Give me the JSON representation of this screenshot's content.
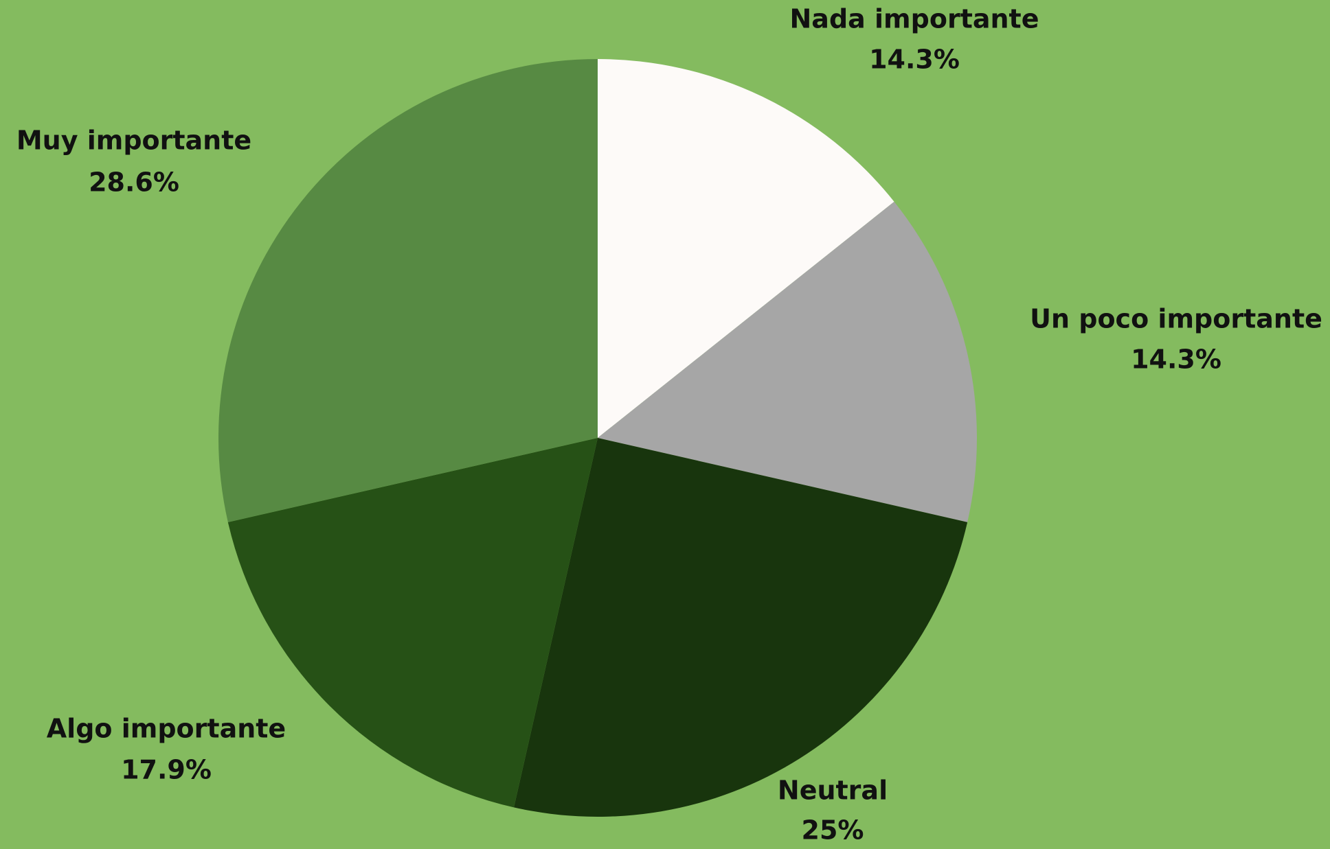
{
  "chart_data": {
    "type": "pie",
    "categories": [
      "Nada importante",
      "Un poco importante",
      "Neutral",
      "Algo importante",
      "Muy importante"
    ],
    "values": [
      14.3,
      14.3,
      25,
      17.9,
      28.6
    ],
    "value_labels": [
      "14.3%",
      "14.3%",
      "25%",
      "17.9%",
      "28.6%"
    ],
    "colors": [
      "#fdfaf8",
      "#a6a6a6",
      "#18350d",
      "#265116",
      "#578a43"
    ]
  }
}
